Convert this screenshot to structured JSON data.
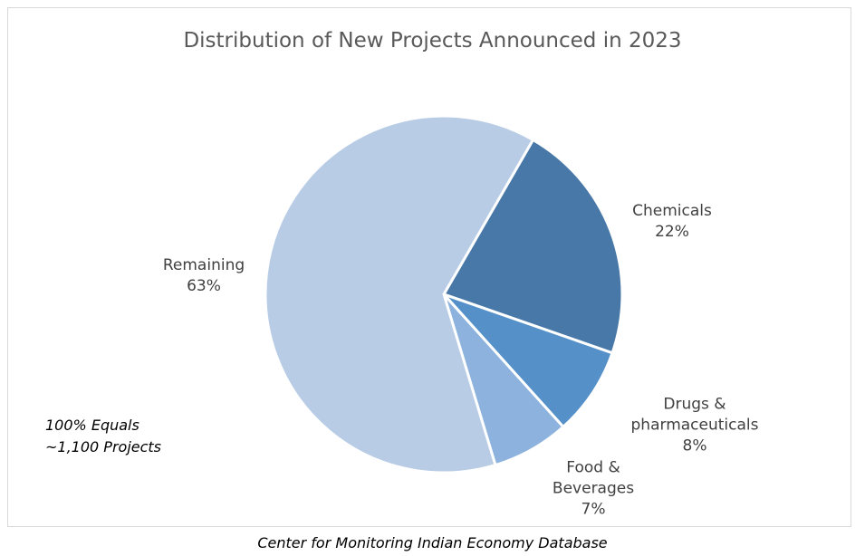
{
  "chart_data": {
    "type": "pie",
    "title": "Distribution of New Projects Announced in 2023",
    "categories": [
      "Chemicals",
      "Drugs & pharmaceuticals",
      "Food & Beverages",
      "Remaining"
    ],
    "values": [
      22,
      8,
      7,
      63
    ],
    "value_labels": [
      "22%",
      "8%",
      "7%",
      "63%"
    ],
    "colors": [
      "#4878a8",
      "#5591c8",
      "#8cb2dd",
      "#b8cce6"
    ],
    "annotation": "100% Equals ~1,100 Projects",
    "source": "Center for Monitoring Indian Economy Database"
  }
}
